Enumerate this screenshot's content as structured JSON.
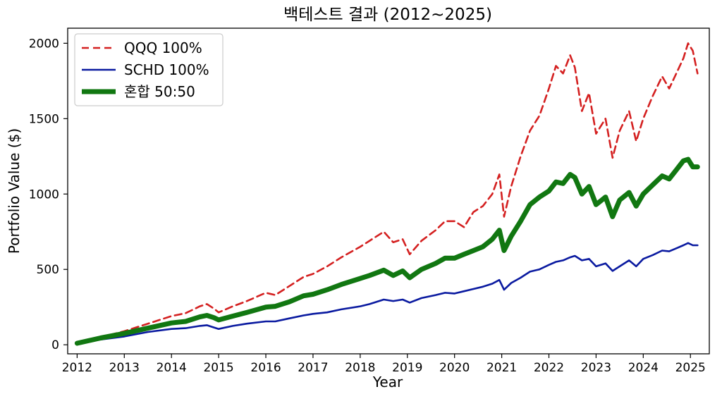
{
  "chart_data": {
    "type": "line",
    "title": "백테스트 결과 (2012~2025)",
    "xlabel": "Year",
    "ylabel": "Portfolio Value ($)",
    "xlim": [
      2011.8,
      2025.4
    ],
    "ylim": [
      -60,
      2100
    ],
    "x_ticks": [
      "2012",
      "2013",
      "2014",
      "2015",
      "2016",
      "2017",
      "2018",
      "2019",
      "2020",
      "2021",
      "2022",
      "2023",
      "2024",
      "2025"
    ],
    "y_ticks": [
      "0",
      "500",
      "1000",
      "1500",
      "2000"
    ],
    "legend_position": "top-left",
    "grid": false,
    "series": [
      {
        "name": "QQQ 100%",
        "color": "#d42020",
        "style": "dashed",
        "points": [
          [
            2012.0,
            10
          ],
          [
            2012.5,
            50
          ],
          [
            2013.0,
            90
          ],
          [
            2013.5,
            140
          ],
          [
            2014.0,
            190
          ],
          [
            2014.3,
            210
          ],
          [
            2014.6,
            255
          ],
          [
            2014.75,
            270
          ],
          [
            2014.9,
            240
          ],
          [
            2015.0,
            215
          ],
          [
            2015.3,
            255
          ],
          [
            2015.6,
            290
          ],
          [
            2016.0,
            345
          ],
          [
            2016.2,
            330
          ],
          [
            2016.5,
            390
          ],
          [
            2016.8,
            450
          ],
          [
            2017.0,
            470
          ],
          [
            2017.3,
            520
          ],
          [
            2017.6,
            580
          ],
          [
            2018.0,
            650
          ],
          [
            2018.2,
            690
          ],
          [
            2018.5,
            750
          ],
          [
            2018.7,
            680
          ],
          [
            2018.9,
            700
          ],
          [
            2019.05,
            600
          ],
          [
            2019.3,
            690
          ],
          [
            2019.6,
            760
          ],
          [
            2019.8,
            820
          ],
          [
            2020.0,
            820
          ],
          [
            2020.2,
            780
          ],
          [
            2020.4,
            880
          ],
          [
            2020.6,
            920
          ],
          [
            2020.8,
            1000
          ],
          [
            2020.95,
            1130
          ],
          [
            2021.05,
            850
          ],
          [
            2021.2,
            1050
          ],
          [
            2021.4,
            1250
          ],
          [
            2021.6,
            1420
          ],
          [
            2021.8,
            1520
          ],
          [
            2022.0,
            1700
          ],
          [
            2022.15,
            1850
          ],
          [
            2022.3,
            1800
          ],
          [
            2022.45,
            1920
          ],
          [
            2022.55,
            1840
          ],
          [
            2022.7,
            1550
          ],
          [
            2022.85,
            1670
          ],
          [
            2023.0,
            1400
          ],
          [
            2023.2,
            1500
          ],
          [
            2023.35,
            1240
          ],
          [
            2023.5,
            1420
          ],
          [
            2023.7,
            1550
          ],
          [
            2023.85,
            1350
          ],
          [
            2024.0,
            1500
          ],
          [
            2024.2,
            1650
          ],
          [
            2024.4,
            1780
          ],
          [
            2024.55,
            1700
          ],
          [
            2024.7,
            1800
          ],
          [
            2024.85,
            1900
          ],
          [
            2024.95,
            2000
          ],
          [
            2025.05,
            1950
          ],
          [
            2025.15,
            1800
          ]
        ]
      },
      {
        "name": "SCHD 100%",
        "color": "#0a1aa0",
        "style": "solid",
        "points": [
          [
            2012.0,
            10
          ],
          [
            2012.5,
            35
          ],
          [
            2013.0,
            55
          ],
          [
            2013.5,
            85
          ],
          [
            2014.0,
            105
          ],
          [
            2014.3,
            110
          ],
          [
            2014.6,
            125
          ],
          [
            2014.75,
            130
          ],
          [
            2014.9,
            115
          ],
          [
            2015.0,
            105
          ],
          [
            2015.3,
            125
          ],
          [
            2015.6,
            140
          ],
          [
            2016.0,
            155
          ],
          [
            2016.2,
            155
          ],
          [
            2016.5,
            175
          ],
          [
            2016.8,
            195
          ],
          [
            2017.0,
            205
          ],
          [
            2017.3,
            215
          ],
          [
            2017.6,
            235
          ],
          [
            2018.0,
            255
          ],
          [
            2018.2,
            270
          ],
          [
            2018.5,
            300
          ],
          [
            2018.7,
            290
          ],
          [
            2018.9,
            300
          ],
          [
            2019.05,
            280
          ],
          [
            2019.3,
            310
          ],
          [
            2019.6,
            330
          ],
          [
            2019.8,
            345
          ],
          [
            2020.0,
            340
          ],
          [
            2020.2,
            355
          ],
          [
            2020.4,
            370
          ],
          [
            2020.6,
            385
          ],
          [
            2020.8,
            405
          ],
          [
            2020.95,
            430
          ],
          [
            2021.05,
            365
          ],
          [
            2021.2,
            410
          ],
          [
            2021.4,
            445
          ],
          [
            2021.6,
            485
          ],
          [
            2021.8,
            500
          ],
          [
            2022.0,
            530
          ],
          [
            2022.15,
            550
          ],
          [
            2022.3,
            560
          ],
          [
            2022.45,
            580
          ],
          [
            2022.55,
            590
          ],
          [
            2022.7,
            560
          ],
          [
            2022.85,
            570
          ],
          [
            2023.0,
            520
          ],
          [
            2023.2,
            540
          ],
          [
            2023.35,
            490
          ],
          [
            2023.5,
            520
          ],
          [
            2023.7,
            560
          ],
          [
            2023.85,
            520
          ],
          [
            2024.0,
            570
          ],
          [
            2024.2,
            595
          ],
          [
            2024.4,
            625
          ],
          [
            2024.55,
            620
          ],
          [
            2024.7,
            640
          ],
          [
            2024.85,
            660
          ],
          [
            2024.95,
            675
          ],
          [
            2025.05,
            660
          ],
          [
            2025.15,
            660
          ]
        ]
      },
      {
        "name": "혼합 50:50",
        "color": "#117711",
        "style": "solid-thick",
        "points": [
          [
            2012.0,
            10
          ],
          [
            2012.5,
            45
          ],
          [
            2013.0,
            75
          ],
          [
            2013.5,
            110
          ],
          [
            2014.0,
            145
          ],
          [
            2014.3,
            155
          ],
          [
            2014.6,
            185
          ],
          [
            2014.75,
            195
          ],
          [
            2014.9,
            180
          ],
          [
            2015.0,
            165
          ],
          [
            2015.3,
            190
          ],
          [
            2015.6,
            215
          ],
          [
            2016.0,
            250
          ],
          [
            2016.2,
            255
          ],
          [
            2016.5,
            285
          ],
          [
            2016.8,
            325
          ],
          [
            2017.0,
            335
          ],
          [
            2017.3,
            365
          ],
          [
            2017.6,
            400
          ],
          [
            2018.0,
            440
          ],
          [
            2018.2,
            460
          ],
          [
            2018.5,
            495
          ],
          [
            2018.7,
            460
          ],
          [
            2018.9,
            490
          ],
          [
            2019.05,
            445
          ],
          [
            2019.3,
            500
          ],
          [
            2019.6,
            540
          ],
          [
            2019.8,
            575
          ],
          [
            2020.0,
            575
          ],
          [
            2020.2,
            600
          ],
          [
            2020.4,
            625
          ],
          [
            2020.6,
            650
          ],
          [
            2020.8,
            700
          ],
          [
            2020.95,
            760
          ],
          [
            2021.05,
            625
          ],
          [
            2021.2,
            720
          ],
          [
            2021.4,
            820
          ],
          [
            2021.6,
            930
          ],
          [
            2021.8,
            980
          ],
          [
            2022.0,
            1020
          ],
          [
            2022.15,
            1080
          ],
          [
            2022.3,
            1070
          ],
          [
            2022.45,
            1130
          ],
          [
            2022.55,
            1110
          ],
          [
            2022.7,
            1000
          ],
          [
            2022.85,
            1050
          ],
          [
            2023.0,
            930
          ],
          [
            2023.2,
            980
          ],
          [
            2023.35,
            850
          ],
          [
            2023.5,
            960
          ],
          [
            2023.7,
            1010
          ],
          [
            2023.85,
            920
          ],
          [
            2024.0,
            1000
          ],
          [
            2024.2,
            1060
          ],
          [
            2024.4,
            1120
          ],
          [
            2024.55,
            1100
          ],
          [
            2024.7,
            1160
          ],
          [
            2024.85,
            1220
          ],
          [
            2024.95,
            1230
          ],
          [
            2025.05,
            1180
          ],
          [
            2025.15,
            1180
          ]
        ]
      }
    ]
  }
}
